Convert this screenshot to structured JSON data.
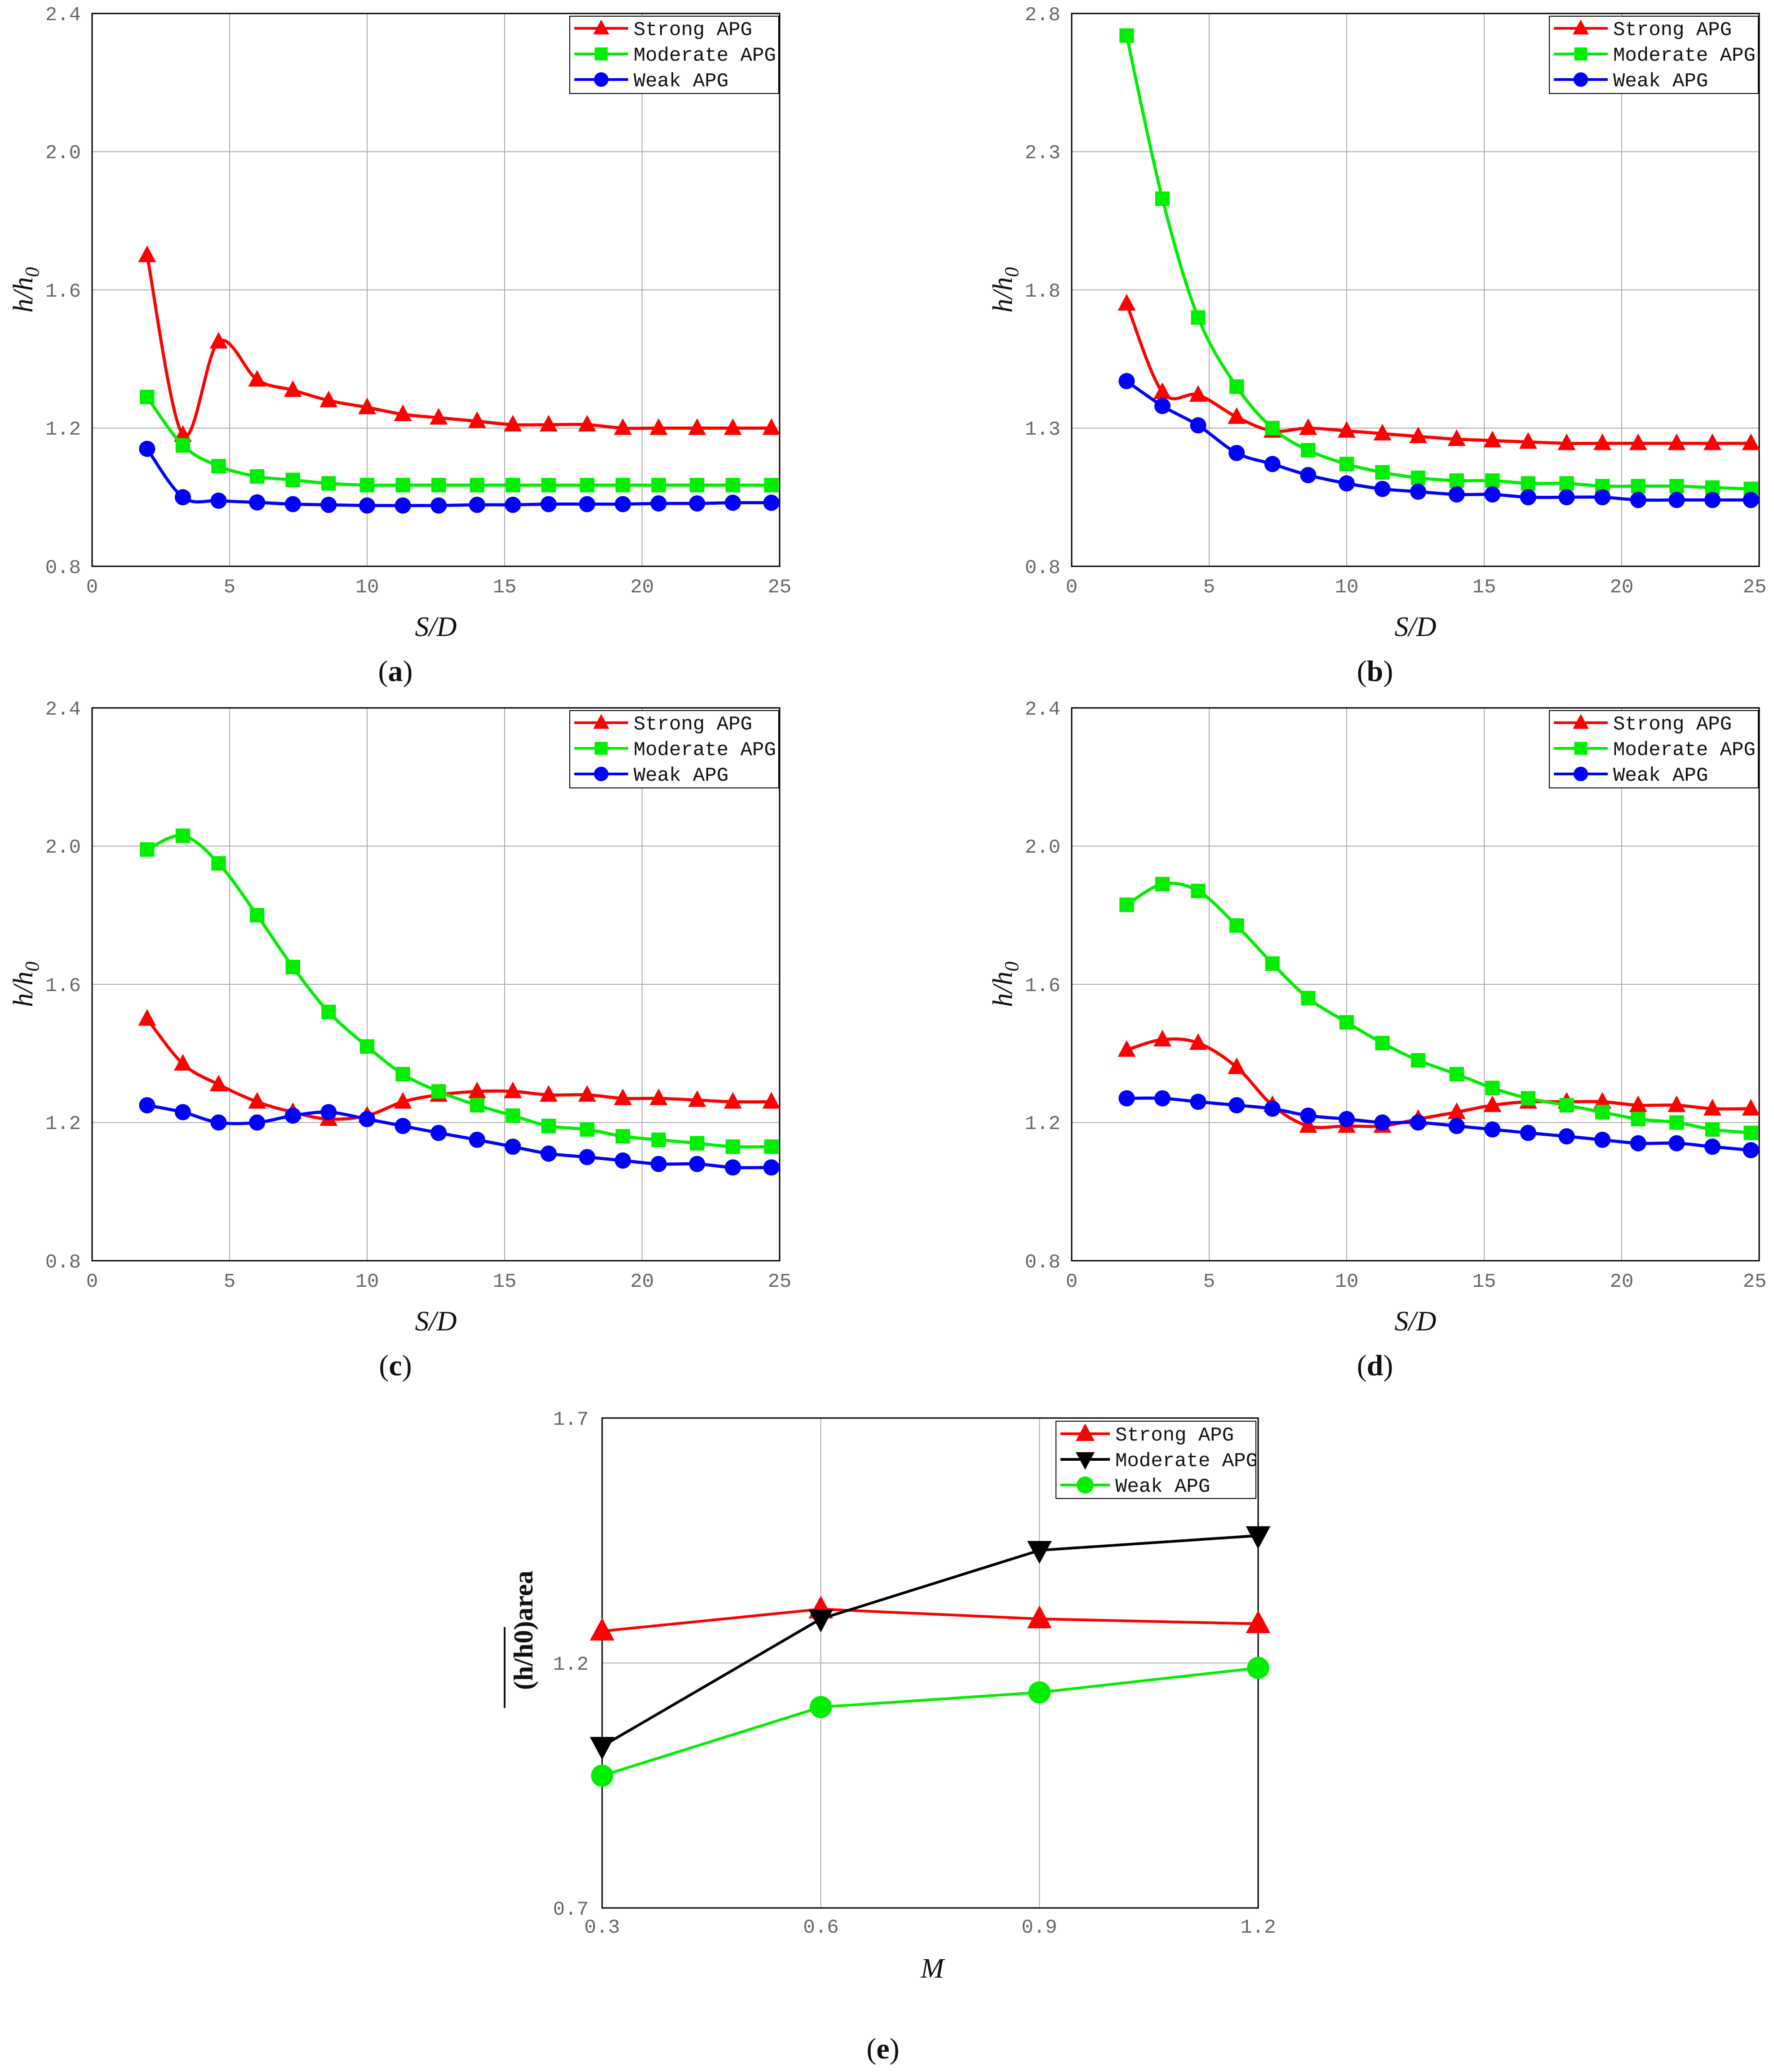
{
  "colors": {
    "strong": "#ff0000",
    "moderate": "#00ee00",
    "weak": "#0000ff",
    "moderate_e": "#000000",
    "weak_e": "#00ee00",
    "grid": "#aaaaaa",
    "axis": "#000000"
  },
  "chart_data": [
    {
      "id": "a",
      "type": "line",
      "caption_letter": "a",
      "xlabel": "S/D",
      "ylabel": "h/h",
      "ylabel_sub": "0",
      "xlim": [
        0,
        25
      ],
      "ylim": [
        0.8,
        2.4
      ],
      "xticks": [
        0,
        5,
        10,
        15,
        20,
        25
      ],
      "yticks": [
        0.8,
        1.2,
        1.6,
        2.0,
        2.4
      ],
      "xtick_labels": [
        "0",
        "5",
        "10",
        "15",
        "20",
        "25"
      ],
      "ytick_labels": [
        "0.8",
        "1.2",
        "1.6",
        "2.0",
        "2.4"
      ],
      "x": [
        2.0,
        3.3,
        4.6,
        6.0,
        7.3,
        8.6,
        10.0,
        11.3,
        12.6,
        14.0,
        15.3,
        16.6,
        18.0,
        19.3,
        20.6,
        22.0,
        23.3,
        24.7
      ],
      "series": [
        {
          "name": "Strong APG",
          "marker": "triangle-up",
          "color": "#ff0000",
          "values": [
            1.7,
            1.18,
            1.45,
            1.34,
            1.31,
            1.28,
            1.26,
            1.24,
            1.23,
            1.22,
            1.21,
            1.21,
            1.21,
            1.2,
            1.2,
            1.2,
            1.2,
            1.2
          ]
        },
        {
          "name": "Moderate APG",
          "marker": "square",
          "color": "#00ee00",
          "values": [
            1.29,
            1.15,
            1.09,
            1.06,
            1.05,
            1.04,
            1.035,
            1.035,
            1.035,
            1.035,
            1.035,
            1.035,
            1.035,
            1.035,
            1.035,
            1.035,
            1.035,
            1.035
          ]
        },
        {
          "name": "Weak APG",
          "marker": "circle",
          "color": "#0000ff",
          "values": [
            1.14,
            1.0,
            0.99,
            0.985,
            0.98,
            0.978,
            0.976,
            0.976,
            0.976,
            0.978,
            0.978,
            0.98,
            0.98,
            0.98,
            0.982,
            0.982,
            0.984,
            0.984
          ]
        }
      ]
    },
    {
      "id": "b",
      "type": "line",
      "caption_letter": "b",
      "xlabel": "S/D",
      "ylabel": "h/h",
      "ylabel_sub": "0",
      "xlim": [
        0,
        25
      ],
      "ylim": [
        0.8,
        2.8
      ],
      "xticks": [
        0,
        5,
        10,
        15,
        20,
        25
      ],
      "yticks": [
        0.8,
        1.3,
        1.8,
        2.3,
        2.8
      ],
      "xtick_labels": [
        "0",
        "5",
        "10",
        "15",
        "20",
        "25"
      ],
      "ytick_labels": [
        "0.8",
        "1.3",
        "1.8",
        "2.3",
        "2.8"
      ],
      "x": [
        2.0,
        3.3,
        4.6,
        6.0,
        7.3,
        8.6,
        10.0,
        11.3,
        12.6,
        14.0,
        15.3,
        16.6,
        18.0,
        19.3,
        20.6,
        22.0,
        23.3,
        24.7
      ],
      "series": [
        {
          "name": "Strong APG",
          "marker": "triangle-up",
          "color": "#ff0000",
          "values": [
            1.75,
            1.43,
            1.42,
            1.34,
            1.29,
            1.3,
            1.29,
            1.28,
            1.27,
            1.26,
            1.255,
            1.25,
            1.245,
            1.245,
            1.245,
            1.245,
            1.245,
            1.245
          ]
        },
        {
          "name": "Moderate APG",
          "marker": "square",
          "color": "#00ee00",
          "values": [
            2.72,
            2.13,
            1.7,
            1.45,
            1.3,
            1.22,
            1.17,
            1.14,
            1.12,
            1.11,
            1.11,
            1.1,
            1.1,
            1.09,
            1.09,
            1.09,
            1.085,
            1.08
          ]
        },
        {
          "name": "Weak APG",
          "marker": "circle",
          "color": "#0000ff",
          "values": [
            1.47,
            1.38,
            1.31,
            1.21,
            1.17,
            1.13,
            1.1,
            1.08,
            1.07,
            1.06,
            1.06,
            1.05,
            1.05,
            1.05,
            1.04,
            1.04,
            1.04,
            1.04
          ]
        }
      ]
    },
    {
      "id": "c",
      "type": "line",
      "caption_letter": "c",
      "xlabel": "S/D",
      "ylabel": "h/h",
      "ylabel_sub": "0",
      "xlim": [
        0,
        25
      ],
      "ylim": [
        0.8,
        2.4
      ],
      "xticks": [
        0,
        5,
        10,
        15,
        20,
        25
      ],
      "yticks": [
        0.8,
        1.2,
        1.6,
        2.0,
        2.4
      ],
      "xtick_labels": [
        "0",
        "5",
        "10",
        "15",
        "20",
        "25"
      ],
      "ytick_labels": [
        "0.8",
        "1.2",
        "1.6",
        "2.0",
        "2.4"
      ],
      "x": [
        2.0,
        3.3,
        4.6,
        6.0,
        7.3,
        8.6,
        10.0,
        11.3,
        12.6,
        14.0,
        15.3,
        16.6,
        18.0,
        19.3,
        20.6,
        22.0,
        23.3,
        24.7
      ],
      "series": [
        {
          "name": "Strong APG",
          "marker": "triangle-up",
          "color": "#ff0000",
          "values": [
            1.5,
            1.37,
            1.31,
            1.26,
            1.23,
            1.21,
            1.22,
            1.26,
            1.28,
            1.29,
            1.29,
            1.28,
            1.28,
            1.27,
            1.27,
            1.265,
            1.26,
            1.26
          ]
        },
        {
          "name": "Moderate APG",
          "marker": "square",
          "color": "#00ee00",
          "values": [
            1.99,
            2.03,
            1.95,
            1.8,
            1.65,
            1.52,
            1.42,
            1.34,
            1.29,
            1.25,
            1.22,
            1.19,
            1.18,
            1.16,
            1.15,
            1.14,
            1.13,
            1.13
          ]
        },
        {
          "name": "Weak APG",
          "marker": "circle",
          "color": "#0000ff",
          "values": [
            1.25,
            1.23,
            1.2,
            1.2,
            1.22,
            1.23,
            1.21,
            1.19,
            1.17,
            1.15,
            1.13,
            1.11,
            1.1,
            1.09,
            1.08,
            1.08,
            1.07,
            1.07
          ]
        }
      ]
    },
    {
      "id": "d",
      "type": "line",
      "caption_letter": "d",
      "xlabel": "S/D",
      "ylabel": "h/h",
      "ylabel_sub": "0",
      "xlim": [
        0,
        25
      ],
      "ylim": [
        0.8,
        2.4
      ],
      "xticks": [
        0,
        5,
        10,
        15,
        20,
        25
      ],
      "yticks": [
        0.8,
        1.2,
        1.6,
        2.0,
        2.4
      ],
      "xtick_labels": [
        "0",
        "5",
        "10",
        "15",
        "20",
        "25"
      ],
      "ytick_labels": [
        "0.8",
        "1.2",
        "1.6",
        "2.0",
        "2.4"
      ],
      "x": [
        2.0,
        3.3,
        4.6,
        6.0,
        7.3,
        8.6,
        10.0,
        11.3,
        12.6,
        14.0,
        15.3,
        16.6,
        18.0,
        19.3,
        20.6,
        22.0,
        23.3,
        24.7
      ],
      "series": [
        {
          "name": "Strong APG",
          "marker": "triangle-up",
          "color": "#ff0000",
          "values": [
            1.41,
            1.44,
            1.43,
            1.36,
            1.25,
            1.19,
            1.19,
            1.19,
            1.21,
            1.23,
            1.25,
            1.26,
            1.26,
            1.26,
            1.25,
            1.25,
            1.24,
            1.24
          ]
        },
        {
          "name": "Moderate APG",
          "marker": "square",
          "color": "#00ee00",
          "values": [
            1.83,
            1.89,
            1.87,
            1.77,
            1.66,
            1.56,
            1.49,
            1.43,
            1.38,
            1.34,
            1.3,
            1.27,
            1.25,
            1.23,
            1.21,
            1.2,
            1.18,
            1.17
          ]
        },
        {
          "name": "Weak APG",
          "marker": "circle",
          "color": "#0000ff",
          "values": [
            1.27,
            1.27,
            1.26,
            1.25,
            1.24,
            1.22,
            1.21,
            1.2,
            1.2,
            1.19,
            1.18,
            1.17,
            1.16,
            1.15,
            1.14,
            1.14,
            1.13,
            1.12
          ]
        }
      ]
    },
    {
      "id": "e",
      "type": "line",
      "caption_letter": "e",
      "xlabel": "M",
      "ylabel": "(h/h0)area",
      "xlim": [
        0.3,
        1.2
      ],
      "ylim": [
        0.7,
        1.7
      ],
      "xticks": [
        0.3,
        0.6,
        0.9,
        1.2
      ],
      "yticks": [
        0.7,
        1.2,
        1.7
      ],
      "xtick_labels": [
        "0.3",
        "0.6",
        "0.9",
        "1.2"
      ],
      "ytick_labels": [
        "0.7",
        "1.2",
        "1.7"
      ],
      "x": [
        0.3,
        0.6,
        0.9,
        1.2
      ],
      "series": [
        {
          "name": "Strong APG",
          "marker": "triangle-up",
          "color": "#ff0000",
          "values": [
            1.265,
            1.31,
            1.29,
            1.28
          ]
        },
        {
          "name": "Moderate APG",
          "marker": "triangle-down",
          "color": "#000000",
          "values": [
            1.03,
            1.29,
            1.43,
            1.46
          ]
        },
        {
          "name": "Weak APG",
          "marker": "circle",
          "color": "#00ee00",
          "values": [
            0.97,
            1.11,
            1.14,
            1.19
          ]
        }
      ]
    }
  ]
}
